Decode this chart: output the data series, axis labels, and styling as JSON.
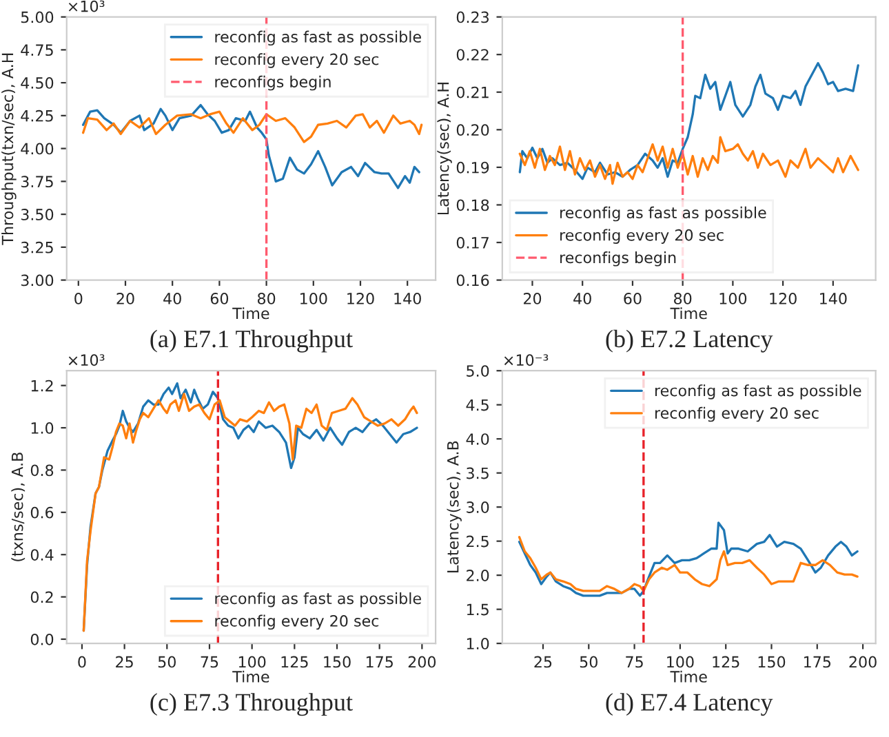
{
  "chart_data": [
    {
      "type": "line",
      "title": "(a) E7.1 Throughput",
      "xlabel": "Time",
      "ylabel": "Throughput(txn/sec), A.H",
      "annotations": [
        "×10³"
      ],
      "legend": "top right",
      "xlim": [
        -5,
        152
      ],
      "ylim": [
        3.0,
        5.0
      ],
      "xticks": [
        0,
        20,
        40,
        60,
        80,
        100,
        120,
        140
      ],
      "yticks": [
        {
          "value": 3.0,
          "label": "3.00"
        },
        {
          "value": 3.25,
          "label": "3.25"
        },
        {
          "value": 3.5,
          "label": "3.50"
        },
        {
          "value": 3.75,
          "label": "3.75"
        },
        {
          "value": 4.0,
          "label": "4.00"
        },
        {
          "value": 4.25,
          "label": "4.25"
        },
        {
          "value": 4.5,
          "label": "4.50"
        },
        {
          "value": 4.75,
          "label": "4.75"
        },
        {
          "value": 5.0,
          "label": "5.00"
        }
      ],
      "ref_lines": [
        {
          "axis": "x",
          "value": 80,
          "label": "reconfigs begin",
          "color": "#ff5a6e",
          "line_style": "dashed"
        }
      ],
      "series": [
        {
          "name": "reconfig as fast as possible",
          "color": "#1f77b4",
          "x": [
            2,
            5,
            8,
            11,
            15,
            18,
            22,
            26,
            28,
            32,
            35,
            37,
            40,
            43,
            48,
            52,
            55,
            58,
            61,
            64,
            67,
            71,
            73,
            76,
            78,
            80,
            81,
            84,
            87,
            90,
            93,
            96,
            99,
            102,
            105,
            108,
            112,
            116,
            119,
            122,
            126,
            129,
            132,
            136,
            139,
            141,
            143,
            145
          ],
          "values": [
            4.18,
            4.28,
            4.29,
            4.23,
            4.18,
            4.12,
            4.21,
            4.25,
            4.14,
            4.19,
            4.3,
            4.25,
            4.14,
            4.23,
            4.25,
            4.33,
            4.26,
            4.21,
            4.12,
            4.14,
            4.23,
            4.21,
            4.28,
            4.16,
            4.12,
            4.07,
            3.95,
            3.75,
            3.77,
            3.93,
            3.84,
            3.81,
            3.88,
            3.98,
            3.86,
            3.72,
            3.82,
            3.86,
            3.79,
            3.89,
            3.82,
            3.81,
            3.81,
            3.7,
            3.79,
            3.74,
            3.86,
            3.82
          ]
        },
        {
          "name": "reconfig every 20 sec",
          "color": "#ff7f0e",
          "x": [
            2,
            4,
            8,
            12,
            15,
            18,
            22,
            26,
            30,
            33,
            37,
            42,
            48,
            52,
            56,
            60,
            63,
            66,
            70,
            74,
            77,
            80,
            84,
            88,
            92,
            96,
            99,
            102,
            106,
            110,
            114,
            118,
            121,
            124,
            127,
            130,
            134,
            137,
            141,
            143,
            145,
            146
          ],
          "values": [
            4.12,
            4.23,
            4.22,
            4.14,
            4.19,
            4.11,
            4.21,
            4.16,
            4.23,
            4.11,
            4.18,
            4.25,
            4.26,
            4.23,
            4.26,
            4.28,
            4.19,
            4.12,
            4.23,
            4.14,
            4.18,
            4.26,
            4.21,
            4.23,
            4.16,
            4.05,
            4.09,
            4.18,
            4.19,
            4.21,
            4.16,
            4.25,
            4.26,
            4.16,
            4.21,
            4.12,
            4.25,
            4.19,
            4.21,
            4.18,
            4.11,
            4.18
          ]
        }
      ]
    },
    {
      "type": "line",
      "title": "(b) E7.2 Latency",
      "xlabel": "Time",
      "ylabel": "Latency(sec), A.H",
      "legend": "bottom left",
      "xlim": [
        8,
        157
      ],
      "ylim": [
        0.16,
        0.23
      ],
      "xticks": [
        20,
        40,
        60,
        80,
        100,
        120,
        140
      ],
      "yticks": [
        {
          "value": 0.16,
          "label": "0.16"
        },
        {
          "value": 0.17,
          "label": "0.17"
        },
        {
          "value": 0.18,
          "label": "0.18"
        },
        {
          "value": 0.19,
          "label": "0.19"
        },
        {
          "value": 0.2,
          "label": "0.20"
        },
        {
          "value": 0.21,
          "label": "0.21"
        },
        {
          "value": 0.22,
          "label": "0.22"
        },
        {
          "value": 0.23,
          "label": "0.23"
        }
      ],
      "ref_lines": [
        {
          "axis": "x",
          "value": 80,
          "label": "reconfigs begin",
          "color": "#ff5a6e",
          "line_style": "dashed"
        }
      ],
      "series": [
        {
          "name": "reconfig as fast as possible",
          "color": "#1f77b4",
          "x": [
            15,
            16,
            18,
            20,
            22,
            24,
            26,
            28,
            31,
            34,
            37,
            40,
            42,
            45,
            47,
            50,
            53,
            56,
            59,
            62,
            65,
            68,
            70,
            72,
            74,
            76,
            78,
            80,
            82,
            84,
            85,
            87,
            89,
            91,
            93,
            95,
            97,
            99,
            101,
            104,
            107,
            109,
            111,
            113,
            116,
            118,
            120,
            123,
            125,
            127,
            129,
            131,
            134,
            136,
            138,
            140,
            142,
            145,
            148,
            150
          ],
          "values": [
            0.1887,
            0.1943,
            0.1924,
            0.1952,
            0.1924,
            0.1949,
            0.1912,
            0.1924,
            0.1906,
            0.1912,
            0.1893,
            0.1869,
            0.1899,
            0.1887,
            0.1912,
            0.1881,
            0.1887,
            0.1875,
            0.1893,
            0.1906,
            0.1936,
            0.1918,
            0.1899,
            0.1924,
            0.1875,
            0.1918,
            0.1912,
            0.1949,
            0.198,
            0.2041,
            0.209,
            0.2084,
            0.2146,
            0.2109,
            0.2127,
            0.2053,
            0.209,
            0.2127,
            0.2066,
            0.2035,
            0.2066,
            0.2115,
            0.2146,
            0.2096,
            0.2084,
            0.2053,
            0.209,
            0.2084,
            0.2103,
            0.2066,
            0.2115,
            0.214,
            0.2177,
            0.2152,
            0.2121,
            0.2127,
            0.2103,
            0.2109,
            0.2103,
            0.2171
          ]
        },
        {
          "name": "reconfig every 20 sec",
          "color": "#ff7f0e",
          "x": [
            15,
            17,
            19,
            21,
            23,
            25,
            27,
            29,
            31,
            33,
            35,
            37,
            39,
            41,
            43,
            45,
            47,
            49,
            51,
            52,
            54,
            56,
            58,
            60,
            62,
            64,
            66,
            68,
            70,
            72,
            74,
            76,
            78,
            80,
            82,
            84,
            86,
            88,
            90,
            92,
            94,
            95,
            97,
            100,
            102,
            104,
            106,
            108,
            110,
            112,
            115,
            118,
            121,
            123,
            126,
            129,
            131,
            134,
            137,
            140,
            142,
            144,
            147,
            150
          ],
          "values": [
            0.1936,
            0.1906,
            0.1943,
            0.1899,
            0.1949,
            0.1893,
            0.193,
            0.1906,
            0.1955,
            0.1893,
            0.1943,
            0.1881,
            0.1924,
            0.1893,
            0.1918,
            0.1875,
            0.1906,
            0.1869,
            0.1906,
            0.1856,
            0.1912,
            0.1875,
            0.1887,
            0.1869,
            0.1906,
            0.1887,
            0.1924,
            0.1961,
            0.1918,
            0.1955,
            0.1899,
            0.1949,
            0.1899,
            0.1936,
            0.1881,
            0.193,
            0.1875,
            0.1924,
            0.1893,
            0.193,
            0.1912,
            0.198,
            0.1943,
            0.1949,
            0.1961,
            0.1936,
            0.1918,
            0.1943,
            0.1899,
            0.1936,
            0.1906,
            0.1918,
            0.1875,
            0.1918,
            0.1899,
            0.1949,
            0.1899,
            0.1924,
            0.1906,
            0.1887,
            0.1924,
            0.1887,
            0.193,
            0.1893
          ]
        }
      ]
    },
    {
      "type": "line",
      "title": "(c) E7.3 Throughput",
      "xlabel": "Time",
      "ylabel": "(txns/sec), A.B",
      "annotations": [
        "×10³"
      ],
      "legend": "bottom right",
      "xlim": [
        -9,
        208
      ],
      "ylim": [
        -0.02,
        1.27
      ],
      "xticks": [
        0,
        25,
        50,
        75,
        100,
        125,
        150,
        175,
        200
      ],
      "yticks": [
        {
          "value": 0.0,
          "label": "0.0"
        },
        {
          "value": 0.2,
          "label": "0.2"
        },
        {
          "value": 0.4,
          "label": "0.4"
        },
        {
          "value": 0.6,
          "label": "0.6"
        },
        {
          "value": 0.8,
          "label": "0.8"
        },
        {
          "value": 1.0,
          "label": "1.0"
        },
        {
          "value": 1.2,
          "label": "1.2"
        }
      ],
      "ref_lines": [
        {
          "axis": "x",
          "value": 80,
          "color": "#e8222a",
          "line_style": "dashed"
        }
      ],
      "series": [
        {
          "name": "reconfig as fast as possible",
          "color": "#1f77b4",
          "x": [
            1,
            3,
            5,
            8,
            10,
            12,
            15,
            18,
            20,
            22,
            24,
            26,
            28,
            30,
            33,
            36,
            39,
            42,
            45,
            48,
            51,
            53,
            56,
            58,
            61,
            64,
            66,
            68,
            71,
            74,
            77,
            80,
            83,
            86,
            89,
            92,
            95,
            98,
            101,
            104,
            108,
            112,
            116,
            120,
            123,
            125,
            127,
            130,
            134,
            138,
            142,
            146,
            150,
            153,
            157,
            161,
            165,
            169,
            173,
            177,
            181,
            185,
            189,
            193,
            197
          ],
          "values": [
            0.04,
            0.35,
            0.53,
            0.69,
            0.72,
            0.8,
            0.89,
            0.94,
            0.97,
            1.01,
            1.08,
            1.03,
            1.0,
            0.98,
            1.02,
            1.1,
            1.13,
            1.11,
            1.11,
            1.16,
            1.19,
            1.16,
            1.21,
            1.14,
            1.18,
            1.12,
            1.18,
            1.14,
            1.09,
            1.11,
            1.17,
            1.14,
            1.04,
            1.01,
            1.0,
            0.95,
            0.99,
            1.01,
            0.98,
            1.03,
            1.0,
            1.01,
            0.98,
            0.93,
            0.81,
            0.86,
            1.0,
            0.97,
            0.95,
            0.99,
            0.94,
            1.0,
            0.95,
            0.92,
            0.98,
            1.0,
            0.98,
            1.02,
            1.04,
            1.01,
            0.97,
            0.93,
            0.97,
            0.98,
            1.0
          ]
        },
        {
          "name": "reconfig every 20 sec",
          "color": "#ff7f0e",
          "x": [
            1,
            3,
            5,
            8,
            10,
            13,
            16,
            18,
            20,
            22,
            24,
            26,
            28,
            30,
            32,
            34,
            36,
            39,
            42,
            45,
            48,
            50,
            52,
            55,
            57,
            60,
            63,
            66,
            69,
            72,
            75,
            78,
            81,
            84,
            87,
            90,
            93,
            97,
            100,
            104,
            107,
            110,
            113,
            116,
            119,
            122,
            124,
            126,
            129,
            132,
            135,
            138,
            141,
            144,
            147,
            151,
            155,
            159,
            162,
            166,
            170,
            174,
            178,
            182,
            186,
            190,
            193,
            195,
            197
          ],
          "values": [
            0.04,
            0.37,
            0.51,
            0.69,
            0.72,
            0.86,
            0.85,
            0.91,
            0.98,
            1.02,
            1.01,
            0.95,
            1.02,
            0.93,
            0.99,
            1.04,
            1.07,
            1.05,
            1.09,
            1.13,
            1.09,
            1.07,
            1.11,
            1.13,
            1.08,
            1.16,
            1.08,
            1.1,
            1.11,
            1.07,
            1.04,
            1.11,
            1.13,
            1.05,
            1.03,
            1.01,
            1.04,
            1.03,
            1.05,
            1.08,
            1.07,
            1.12,
            1.08,
            1.1,
            1.11,
            1.02,
            0.85,
            1.01,
            1.0,
            1.09,
            1.07,
            1.11,
            1.01,
            0.99,
            1.07,
            1.08,
            1.09,
            1.14,
            1.11,
            1.05,
            1.03,
            1.01,
            1.02,
            1.04,
            1.01,
            1.04,
            1.08,
            1.1,
            1.07
          ]
        }
      ]
    },
    {
      "type": "line",
      "title": "(d) E7.4 Latency",
      "xlabel": "Time",
      "ylabel": "Latency(sec), A.B",
      "annotations": [
        "×10⁻³"
      ],
      "legend": "top right",
      "xlim": [
        2.7,
        207
      ],
      "ylim": [
        1.0,
        5.0
      ],
      "xticks": [
        25,
        50,
        75,
        100,
        125,
        150,
        175,
        200
      ],
      "yticks": [
        {
          "value": 1.0,
          "label": "1.0"
        },
        {
          "value": 1.5,
          "label": "1.5"
        },
        {
          "value": 2.0,
          "label": "2.0"
        },
        {
          "value": 2.5,
          "label": "2.5"
        },
        {
          "value": 3.0,
          "label": "3.0"
        },
        {
          "value": 3.5,
          "label": "3.5"
        },
        {
          "value": 4.0,
          "label": "4.0"
        },
        {
          "value": 4.5,
          "label": "4.5"
        },
        {
          "value": 5.0,
          "label": "5.0"
        }
      ],
      "ref_lines": [
        {
          "axis": "x",
          "value": 80,
          "color": "#e8222a",
          "line_style": "dashed"
        }
      ],
      "series": [
        {
          "name": "reconfig as fast as possible",
          "color": "#1f77b4",
          "x": [
            12,
            15,
            18,
            21,
            24,
            27,
            29,
            32,
            36,
            40,
            43,
            47,
            52,
            56,
            60,
            64,
            68,
            72,
            75,
            78,
            80,
            83,
            86,
            89,
            93,
            97,
            101,
            105,
            109,
            113,
            117,
            120,
            121,
            124,
            126,
            128,
            132,
            137,
            142,
            146,
            149,
            153,
            157,
            162,
            166,
            170,
            174,
            177,
            181,
            185,
            188,
            191,
            194,
            197
          ],
          "values": [
            2.49,
            2.32,
            2.15,
            2.04,
            1.87,
            1.98,
            2.04,
            1.91,
            1.84,
            1.8,
            1.74,
            1.7,
            1.7,
            1.7,
            1.74,
            1.74,
            1.74,
            1.8,
            1.8,
            1.7,
            1.77,
            1.98,
            2.18,
            2.18,
            2.29,
            2.18,
            2.22,
            2.22,
            2.25,
            2.32,
            2.39,
            2.39,
            2.77,
            2.66,
            2.32,
            2.39,
            2.39,
            2.35,
            2.46,
            2.49,
            2.59,
            2.42,
            2.49,
            2.46,
            2.39,
            2.22,
            2.04,
            2.11,
            2.29,
            2.42,
            2.49,
            2.42,
            2.29,
            2.35
          ]
        },
        {
          "name": "reconfig every 20 sec",
          "color": "#ff7f0e",
          "x": [
            12,
            15,
            18,
            21,
            24,
            27,
            29,
            32,
            36,
            40,
            43,
            47,
            52,
            56,
            60,
            64,
            68,
            72,
            75,
            78,
            80,
            83,
            86,
            90,
            93,
            97,
            100,
            104,
            108,
            112,
            116,
            120,
            122,
            124,
            126,
            130,
            134,
            138,
            142,
            146,
            150,
            154,
            158,
            162,
            166,
            170,
            174,
            178,
            182,
            186,
            190,
            194,
            197
          ],
          "values": [
            2.56,
            2.35,
            2.25,
            2.11,
            1.94,
            2.01,
            2.04,
            1.94,
            1.91,
            1.87,
            1.8,
            1.77,
            1.77,
            1.77,
            1.84,
            1.8,
            1.74,
            1.8,
            1.87,
            1.84,
            1.77,
            1.94,
            2.04,
            2.11,
            2.08,
            2.15,
            2.04,
            2.04,
            1.94,
            1.87,
            1.84,
            1.94,
            2.22,
            2.35,
            2.15,
            2.18,
            2.18,
            2.22,
            2.11,
            2.01,
            1.87,
            1.91,
            1.91,
            1.91,
            2.18,
            2.15,
            2.15,
            2.22,
            2.15,
            2.04,
            2.01,
            2.01,
            1.98
          ]
        }
      ]
    }
  ]
}
